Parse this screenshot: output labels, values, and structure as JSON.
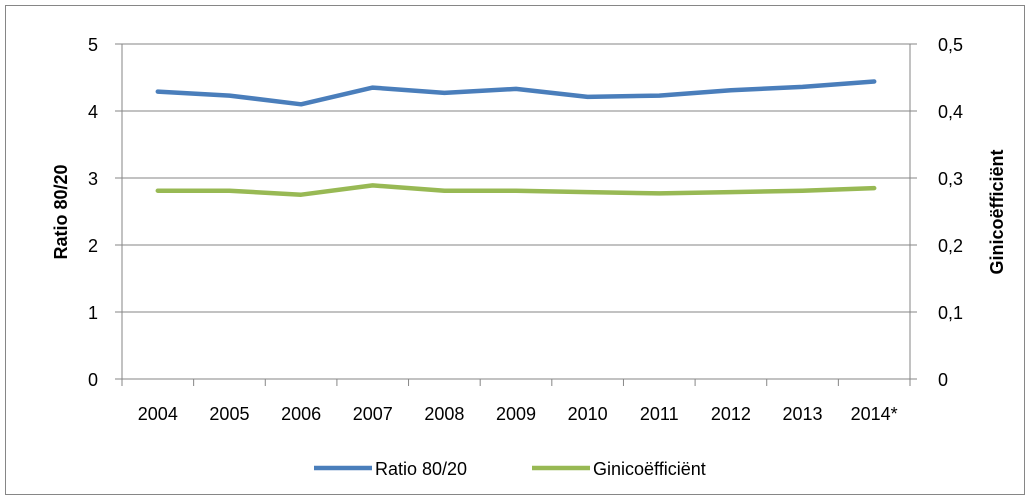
{
  "chart_data": {
    "type": "line",
    "categories": [
      "2004",
      "2005",
      "2006",
      "2007",
      "2008",
      "2009",
      "2010",
      "2011",
      "2012",
      "2013",
      "2014*"
    ],
    "series": [
      {
        "name": "Ratio 80/20",
        "axis": "left",
        "color": "#4a7ebb",
        "values": [
          4.29,
          4.23,
          4.1,
          4.35,
          4.27,
          4.33,
          4.21,
          4.23,
          4.31,
          4.36,
          4.44
        ]
      },
      {
        "name": "Ginicoëfficiënt",
        "axis": "right",
        "color": "#98b954",
        "values": [
          0.281,
          0.281,
          0.275,
          0.289,
          0.281,
          0.281,
          0.279,
          0.277,
          0.279,
          0.281,
          0.285
        ]
      }
    ],
    "ylabel": "Ratio 80/20",
    "y2label": "Ginicoëfficiënt",
    "ylim": [
      0,
      5
    ],
    "y2lim": [
      0,
      0.5
    ],
    "yticks": [
      "0",
      "1",
      "2",
      "3",
      "4",
      "5"
    ],
    "y2ticks": [
      "0",
      "0,1",
      "0,2",
      "0,3",
      "0,4",
      "0,5"
    ],
    "grid": true,
    "legend_position": "bottom"
  }
}
